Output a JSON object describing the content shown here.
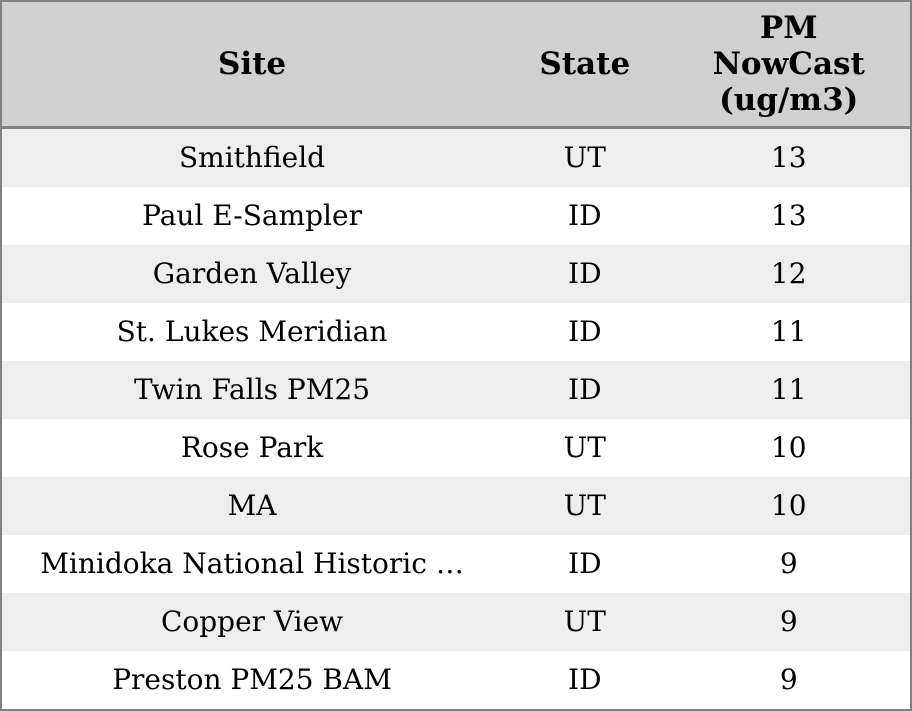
{
  "chart_data": {
    "type": "table",
    "title": "",
    "legend": "none",
    "grid": "off",
    "columns": [
      {
        "id": "site",
        "label": "Site"
      },
      {
        "id": "state",
        "label": "State"
      },
      {
        "id": "pm_nowcast",
        "label": "PM NowCast (ug/m3)"
      }
    ],
    "rows": [
      {
        "site": "Smithfield",
        "state": "UT",
        "pm_nowcast": "13"
      },
      {
        "site": "Paul E-Sampler",
        "state": "ID",
        "pm_nowcast": "13"
      },
      {
        "site": "Garden Valley",
        "state": "ID",
        "pm_nowcast": "12"
      },
      {
        "site": "St. Lukes Meridian",
        "state": "ID",
        "pm_nowcast": "11"
      },
      {
        "site": "Twin Falls PM25",
        "state": "ID",
        "pm_nowcast": "11"
      },
      {
        "site": "Rose Park",
        "state": "UT",
        "pm_nowcast": "10"
      },
      {
        "site": "MA",
        "state": "UT",
        "pm_nowcast": "10"
      },
      {
        "site": "Minidoka National Historic …",
        "state": "ID",
        "pm_nowcast": "9"
      },
      {
        "site": "Copper View",
        "state": "UT",
        "pm_nowcast": "9"
      },
      {
        "site": "Preston PM25 BAM",
        "state": "ID",
        "pm_nowcast": "9"
      }
    ]
  },
  "colors": {
    "border": "#808080",
    "header_bg": "#d0d0d0",
    "row_alt_bg": "#eeeeee",
    "row_bg": "#ffffff",
    "text": "#000000"
  }
}
